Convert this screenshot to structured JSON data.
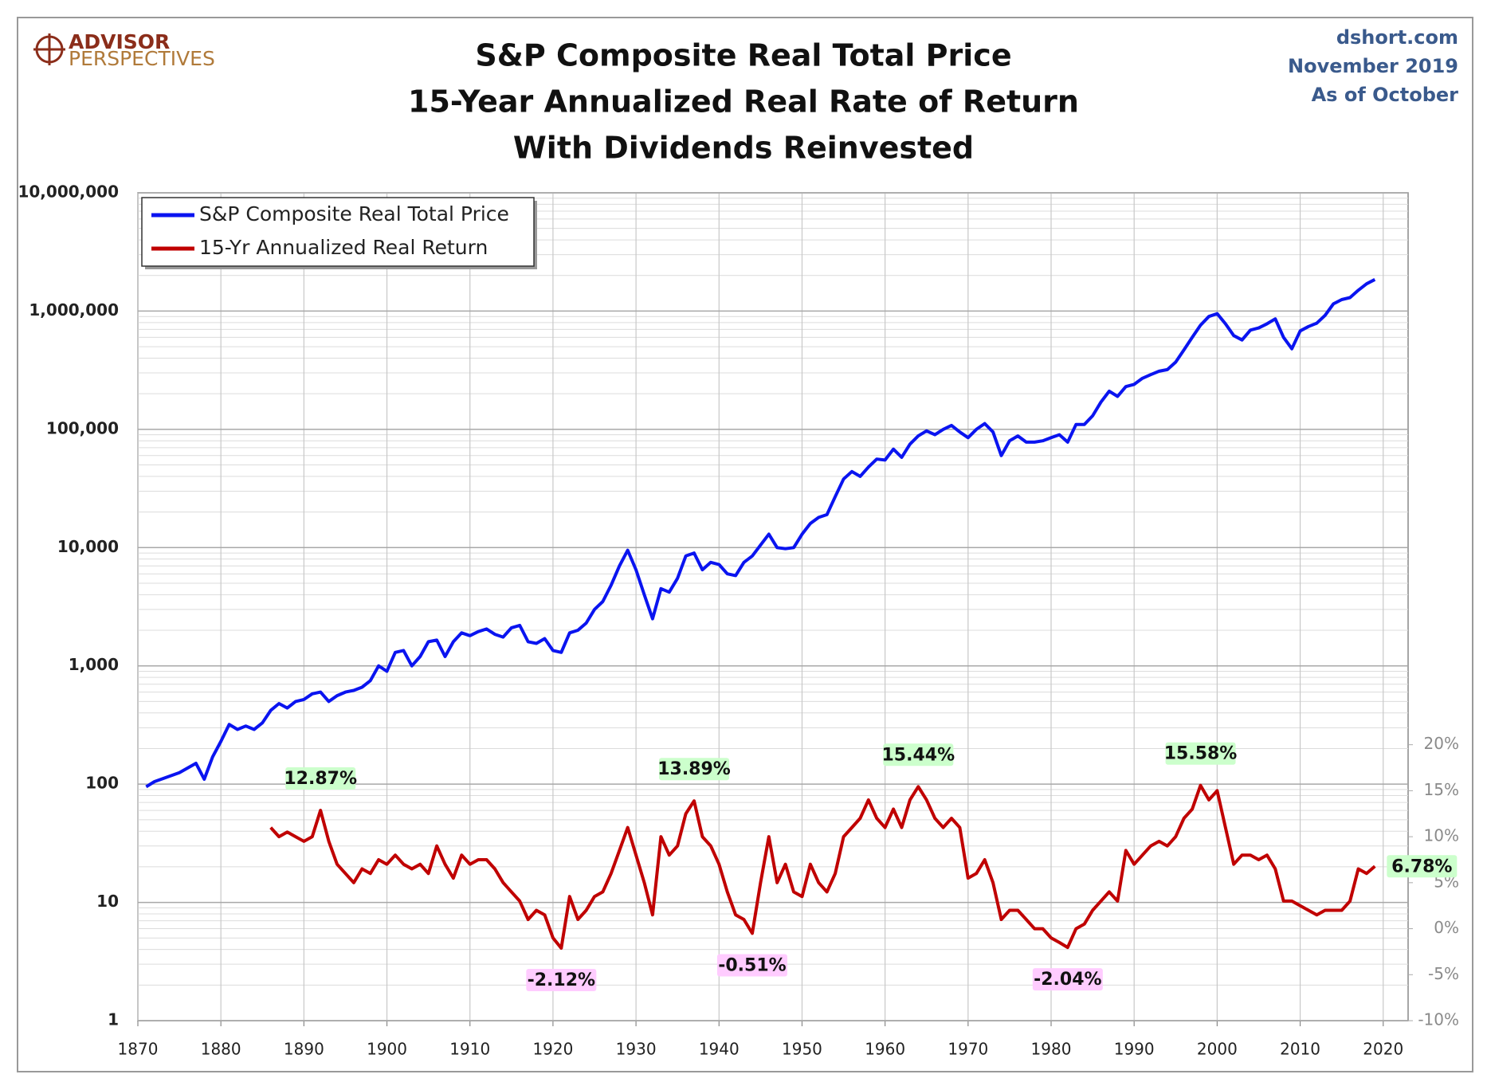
{
  "chart_data": {
    "type": "line",
    "title": [
      "S&P Composite Real Total Price",
      "15-Year Annualized Real Rate of Return",
      "With Dividends Reinvested"
    ],
    "logo": [
      "ADVISOR",
      "PERSPECTIVES"
    ],
    "source": [
      "dshort.com",
      "November 2019",
      "As of October"
    ],
    "yscale": "log",
    "grid": true,
    "legend": "top-left",
    "xlim": [
      1870,
      2023
    ],
    "xticks": [
      1870,
      1880,
      1890,
      1900,
      1910,
      1920,
      1930,
      1940,
      1950,
      1960,
      1970,
      1980,
      1990,
      2000,
      2010,
      2020
    ],
    "ylim": [
      1,
      10000000
    ],
    "yticks": [
      1,
      10,
      100,
      {
        "value": 1000,
        "label": "1,000"
      },
      {
        "value": 10000,
        "label": "10,000"
      },
      {
        "value": 100000,
        "label": "100,000"
      },
      {
        "value": 1000000,
        "label": "1,000,000"
      },
      {
        "value": 10000000,
        "label": "10,000,000"
      }
    ],
    "y2lim": [
      -10,
      80
    ],
    "y2ticks": [
      {
        "value": -10,
        "label": "-10%"
      },
      {
        "value": -5,
        "label": "-5%"
      },
      {
        "value": 0,
        "label": "0%"
      },
      {
        "value": 5,
        "label": "5%"
      },
      {
        "value": 10,
        "label": "10%"
      },
      {
        "value": 15,
        "label": "15%"
      },
      {
        "value": 20,
        "label": "20%"
      }
    ],
    "series": [
      {
        "name": "S&P Composite Real Total Price",
        "color": "#0a14f0",
        "x": [
          1871,
          1872,
          1875,
          1877,
          1878,
          1879,
          1880,
          1881,
          1882,
          1883,
          1884,
          1885,
          1886,
          1887,
          1888,
          1889,
          1890,
          1891,
          1892,
          1893,
          1894,
          1895,
          1896,
          1897,
          1898,
          1899,
          1900,
          1901,
          1902,
          1903,
          1904,
          1905,
          1906,
          1907,
          1908,
          1909,
          1910,
          1911,
          1912,
          1913,
          1914,
          1915,
          1916,
          1917,
          1918,
          1919,
          1920,
          1921,
          1922,
          1923,
          1924,
          1925,
          1926,
          1927,
          1928,
          1929,
          1930,
          1931,
          1932,
          1933,
          1934,
          1935,
          1936,
          1937,
          1938,
          1939,
          1940,
          1941,
          1942,
          1943,
          1944,
          1945,
          1946,
          1947,
          1948,
          1949,
          1950,
          1951,
          1952,
          1953,
          1954,
          1955,
          1956,
          1957,
          1958,
          1959,
          1960,
          1961,
          1962,
          1963,
          1964,
          1965,
          1966,
          1967,
          1968,
          1969,
          1970,
          1971,
          1972,
          1973,
          1974,
          1975,
          1976,
          1977,
          1978,
          1979,
          1980,
          1981,
          1982,
          1983,
          1984,
          1985,
          1986,
          1987,
          1988,
          1989,
          1990,
          1991,
          1992,
          1993,
          1994,
          1995,
          1996,
          1997,
          1998,
          1999,
          2000,
          2001,
          2002,
          2003,
          2004,
          2005,
          2006,
          2007,
          2008,
          2009,
          2010,
          2011,
          2012,
          2013,
          2014,
          2015,
          2016,
          2017,
          2018,
          2019
        ],
        "values": [
          95,
          105,
          125,
          150,
          110,
          170,
          230,
          320,
          290,
          310,
          290,
          330,
          420,
          480,
          440,
          500,
          520,
          580,
          600,
          500,
          560,
          600,
          620,
          660,
          750,
          1000,
          900,
          1300,
          1350,
          1000,
          1200,
          1600,
          1650,
          1200,
          1600,
          1900,
          1800,
          1950,
          2050,
          1850,
          1750,
          2100,
          2200,
          1600,
          1550,
          1700,
          1350,
          1300,
          1900,
          2000,
          2300,
          3000,
          3500,
          4800,
          7000,
          9500,
          6500,
          4000,
          2500,
          4500,
          4200,
          5500,
          8500,
          9000,
          6500,
          7500,
          7200,
          6000,
          5800,
          7500,
          8500,
          10500,
          13000,
          10000,
          9800,
          10000,
          13000,
          16000,
          18000,
          19000,
          27000,
          38000,
          44000,
          40000,
          48000,
          56000,
          55000,
          68000,
          58000,
          75000,
          88000,
          97000,
          90000,
          100000,
          108000,
          95000,
          85000,
          100000,
          112000,
          95000,
          60000,
          80000,
          88000,
          78000,
          78000,
          80000,
          85000,
          90000,
          78000,
          110000,
          110000,
          130000,
          170000,
          210000,
          190000,
          230000,
          240000,
          270000,
          290000,
          310000,
          320000,
          370000,
          470000,
          600000,
          760000,
          900000,
          950000,
          780000,
          620000,
          570000,
          690000,
          720000,
          780000,
          860000,
          600000,
          480000,
          680000,
          740000,
          790000,
          920000,
          1150000,
          1250000,
          1300000,
          1500000,
          1700000,
          1850000
        ]
      },
      {
        "name": "15-Yr Annualized Real Return",
        "color": "#c00000",
        "axis": "y2",
        "x": [
          1886,
          1887,
          1888,
          1889,
          1890,
          1891,
          1892,
          1893,
          1894,
          1895,
          1896,
          1897,
          1898,
          1899,
          1900,
          1901,
          1902,
          1903,
          1904,
          1905,
          1906,
          1907,
          1908,
          1909,
          1910,
          1911,
          1912,
          1913,
          1914,
          1915,
          1916,
          1917,
          1918,
          1919,
          1920,
          1921,
          1922,
          1923,
          1924,
          1925,
          1926,
          1927,
          1928,
          1929,
          1930,
          1931,
          1932,
          1933,
          1934,
          1935,
          1936,
          1937,
          1938,
          1939,
          1940,
          1941,
          1942,
          1943,
          1944,
          1945,
          1946,
          1947,
          1948,
          1949,
          1950,
          1951,
          1952,
          1953,
          1954,
          1955,
          1956,
          1957,
          1958,
          1959,
          1960,
          1961,
          1962,
          1963,
          1964,
          1965,
          1966,
          1967,
          1968,
          1969,
          1970,
          1971,
          1972,
          1973,
          1974,
          1975,
          1976,
          1977,
          1978,
          1979,
          1980,
          1981,
          1982,
          1983,
          1984,
          1985,
          1986,
          1987,
          1988,
          1989,
          1990,
          1991,
          1992,
          1993,
          1994,
          1995,
          1996,
          1997,
          1998,
          1999,
          2000,
          2001,
          2002,
          2003,
          2004,
          2005,
          2006,
          2007,
          2008,
          2009,
          2010,
          2011,
          2012,
          2013,
          2014,
          2015,
          2016,
          2017,
          2018,
          2019
        ],
        "values": [
          11,
          10,
          10.5,
          10,
          9.5,
          10,
          12.87,
          9.5,
          7,
          6,
          5,
          6.5,
          6,
          7.5,
          7,
          8,
          7,
          6.5,
          7,
          6,
          9,
          7,
          5.5,
          8,
          7,
          7.5,
          7.5,
          6.5,
          5,
          4,
          3,
          1,
          2,
          1.5,
          -1,
          -2.12,
          3.5,
          1,
          2,
          3.5,
          4,
          6,
          8.5,
          11,
          8,
          5,
          1.5,
          10,
          8,
          9,
          12.5,
          13.89,
          10,
          9,
          7,
          4,
          1.5,
          1,
          -0.51,
          5,
          10,
          5,
          7,
          4,
          3.5,
          7,
          5,
          4,
          6,
          10,
          11,
          12,
          14,
          12,
          11,
          13,
          11,
          14,
          15.44,
          14,
          12,
          11,
          12,
          11,
          5.5,
          6,
          7.5,
          5,
          1,
          2,
          2,
          1,
          0,
          0,
          -1,
          -1.5,
          -2.04,
          0,
          0.5,
          2,
          3,
          4,
          3,
          8.5,
          7,
          8,
          9,
          9.5,
          9,
          10,
          12,
          13,
          15.58,
          14,
          15,
          11,
          7,
          8,
          8,
          7.5,
          8,
          6.5,
          3,
          3,
          2.5,
          2,
          1.5,
          2,
          2,
          2,
          3,
          6.5,
          6,
          6.78
        ]
      }
    ],
    "annotations": [
      {
        "series": 1,
        "x": 1892,
        "value": 12.87,
        "label": "12.87%",
        "color": "#ccffcc"
      },
      {
        "series": 1,
        "x": 1921,
        "value": -2.12,
        "label": "-2.12%",
        "color": "#ffccff"
      },
      {
        "series": 1,
        "x": 1937,
        "value": 13.89,
        "label": "13.89%",
        "color": "#ccffcc"
      },
      {
        "series": 1,
        "x": 1944,
        "value": -0.51,
        "label": "-0.51%",
        "color": "#ffccff"
      },
      {
        "series": 1,
        "x": 1964,
        "value": 15.44,
        "label": "15.44%",
        "color": "#ccffcc"
      },
      {
        "series": 1,
        "x": 1982,
        "value": -2.04,
        "label": "-2.04%",
        "color": "#ffccff"
      },
      {
        "series": 1,
        "x": 1998,
        "value": 15.58,
        "label": "15.58%",
        "color": "#ccffcc"
      },
      {
        "series": 1,
        "x": 2019,
        "value": 6.78,
        "label": "6.78%",
        "color": "#ccffcc"
      }
    ]
  }
}
